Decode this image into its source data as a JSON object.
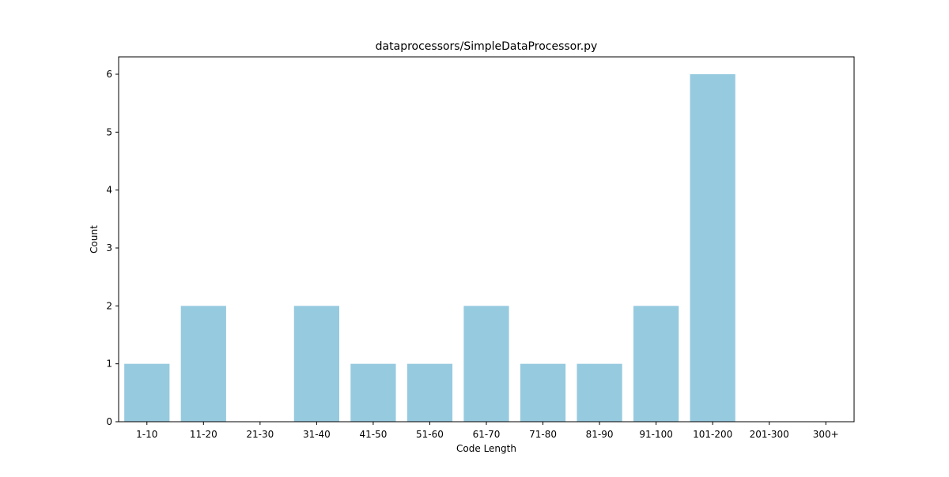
{
  "chart_data": {
    "type": "bar",
    "title": "dataprocessors/SimpleDataProcessor.py",
    "xlabel": "Code Length",
    "ylabel": "Count",
    "categories": [
      "1-10",
      "11-20",
      "21-30",
      "31-40",
      "41-50",
      "51-60",
      "61-70",
      "71-80",
      "81-90",
      "91-100",
      "101-200",
      "201-300",
      "300+"
    ],
    "values": [
      1,
      2,
      0,
      2,
      1,
      1,
      2,
      1,
      1,
      2,
      6,
      0,
      0
    ],
    "ylim": [
      0,
      6.3
    ],
    "yticks": [
      0,
      1,
      2,
      3,
      4,
      5,
      6
    ],
    "grid": false,
    "legend": "none",
    "bar_color": "#96cadf"
  }
}
